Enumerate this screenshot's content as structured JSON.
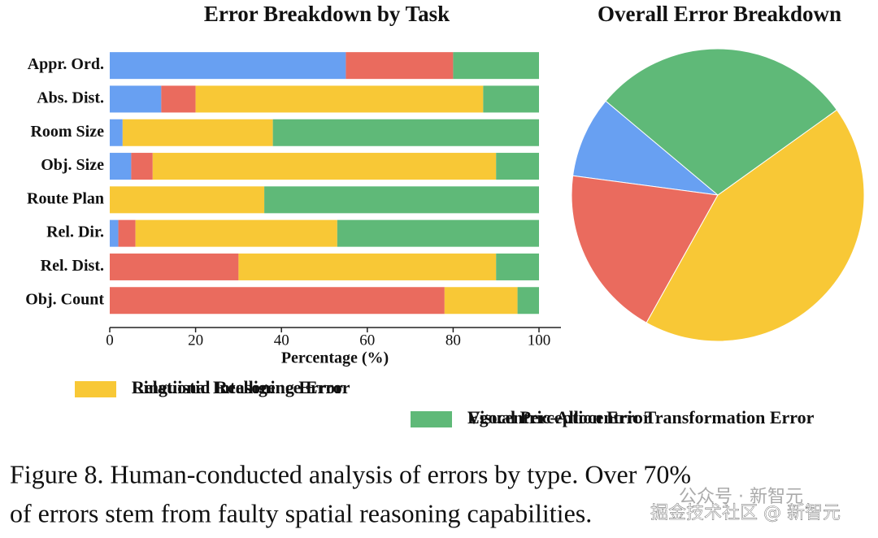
{
  "chart_data": [
    {
      "type": "barh_stacked",
      "title": "Error Breakdown by Task",
      "xlabel": "Percentage (%)",
      "categories": [
        "Appr. Ord.",
        "Abs. Dist.",
        "Room Size",
        "Obj. Size",
        "Route Plan",
        "Rel. Dir.",
        "Rel. Dist.",
        "Obj. Count"
      ],
      "series": [
        {
          "name": "Linguistic Intelligence Error",
          "color": "#68a0f2",
          "values": [
            55,
            12,
            3,
            5,
            0,
            2,
            0,
            0
          ]
        },
        {
          "name": "Visual Perception Error",
          "color": "#ea6b5e",
          "values": [
            25,
            8,
            0,
            5,
            0,
            4,
            30,
            78
          ]
        },
        {
          "name": "Relational Reasoning Error",
          "color": "#f8c836",
          "values": [
            0,
            67,
            35,
            80,
            36,
            47,
            60,
            17
          ]
        },
        {
          "name": "Egocentric-Allocentric Transformation Error",
          "color": "#5fb978",
          "values": [
            20,
            13,
            62,
            10,
            64,
            47,
            10,
            5
          ]
        }
      ],
      "xlim": [
        0,
        100
      ],
      "xticks": [
        0,
        20,
        40,
        60,
        80,
        100
      ]
    },
    {
      "type": "pie",
      "title": "Overall Error Breakdown",
      "values": [
        9,
        19,
        43,
        29
      ],
      "colors": [
        "#68a0f2",
        "#ea6b5e",
        "#f8c836",
        "#5fb978"
      ]
    }
  ],
  "caption": [
    "Figure 8. Human-conducted analysis of errors by type. Over 70%",
    "of errors stem from faulty spatial reasoning capabilities."
  ],
  "watermark": [
    "公众号 · 新智元",
    "掘金技术社区 @ 新智元"
  ]
}
